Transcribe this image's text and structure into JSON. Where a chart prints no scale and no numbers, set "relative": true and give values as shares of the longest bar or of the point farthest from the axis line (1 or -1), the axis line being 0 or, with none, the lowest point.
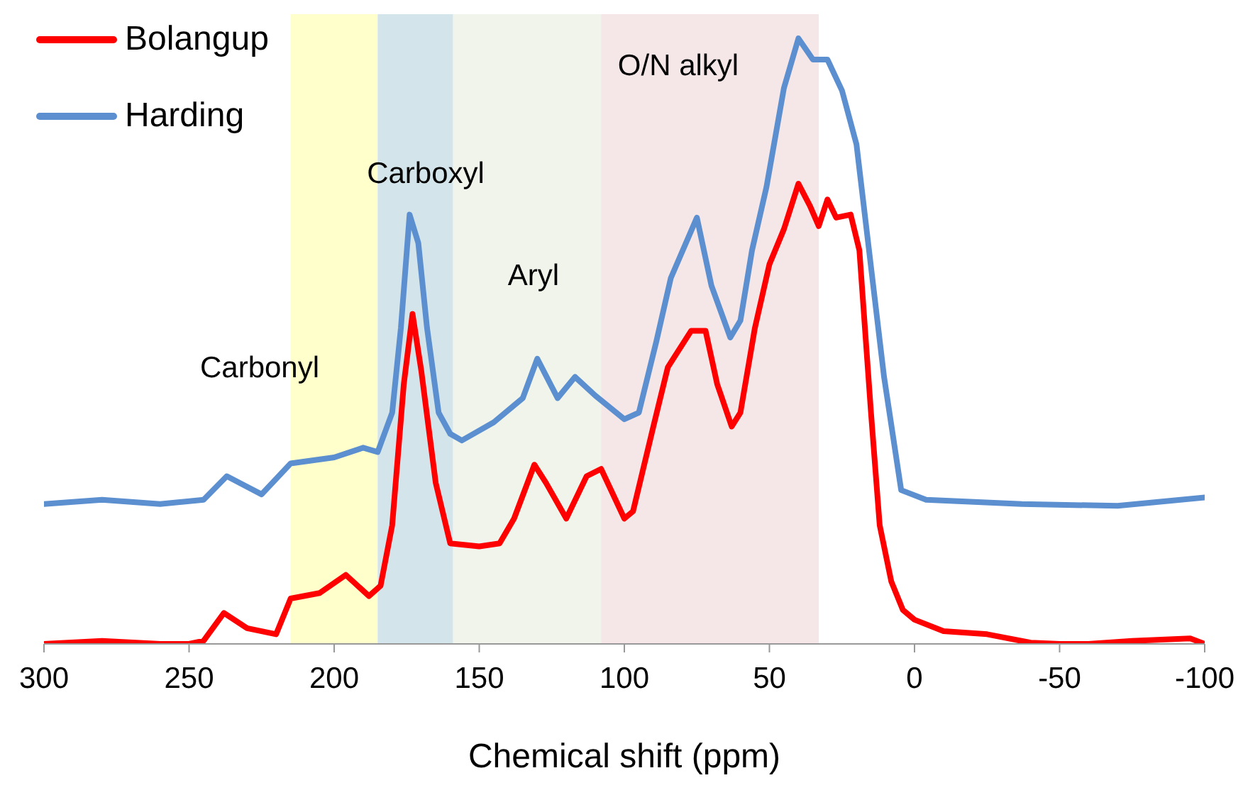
{
  "chart_data": {
    "type": "line",
    "relative": true,
    "xlabel": "Chemical shift (ppm)",
    "xlim": [
      300,
      -100
    ],
    "xticks": [
      300,
      250,
      200,
      150,
      100,
      50,
      0,
      -50,
      -100
    ],
    "legend": "top left",
    "marker": "none",
    "line_style": "solid",
    "series": [
      {
        "name": "Bolangup",
        "color": "#ff0000",
        "x": [
          300,
          280,
          260,
          250,
          245,
          238,
          230,
          220,
          215,
          205,
          196,
          188,
          184,
          180,
          176,
          173,
          170,
          165,
          160,
          150,
          143,
          138,
          131,
          127,
          120,
          113,
          108,
          100,
          97,
          90,
          85,
          77,
          72,
          68,
          63,
          60,
          55,
          50,
          45,
          40,
          36,
          33,
          30,
          27,
          22,
          19,
          15,
          12,
          8,
          4,
          0,
          -10,
          -25,
          -40,
          -50,
          -60,
          -75,
          -95,
          -100
        ],
        "values": [
          0.0,
          0.005,
          0.0,
          0.0,
          0.005,
          0.051,
          0.026,
          0.016,
          0.075,
          0.084,
          0.114,
          0.079,
          0.096,
          0.196,
          0.429,
          0.545,
          0.452,
          0.266,
          0.166,
          0.161,
          0.166,
          0.207,
          0.296,
          0.266,
          0.207,
          0.277,
          0.289,
          0.207,
          0.219,
          0.359,
          0.457,
          0.517,
          0.517,
          0.429,
          0.359,
          0.382,
          0.522,
          0.627,
          0.685,
          0.76,
          0.723,
          0.69,
          0.734,
          0.704,
          0.709,
          0.65,
          0.382,
          0.196,
          0.103,
          0.056,
          0.04,
          0.021,
          0.016,
          0.002,
          0.0,
          0.0,
          0.005,
          0.009,
          0.0
        ]
      },
      {
        "name": "Harding",
        "color": "#5b8fd0",
        "x": [
          300,
          280,
          260,
          245,
          237,
          225,
          215,
          200,
          190,
          185,
          180,
          177,
          174,
          171,
          168,
          164,
          160,
          156,
          145,
          135,
          130,
          123,
          117,
          110,
          100,
          95,
          89,
          84,
          75,
          70,
          63.5,
          60,
          56,
          51,
          45,
          40,
          35,
          30,
          25,
          20,
          15.4,
          10.5,
          4.6,
          -4,
          -37,
          -70,
          -100
        ],
        "values": [
          0.231,
          0.238,
          0.231,
          0.238,
          0.277,
          0.247,
          0.298,
          0.308,
          0.324,
          0.317,
          0.382,
          0.522,
          0.709,
          0.662,
          0.522,
          0.382,
          0.347,
          0.336,
          0.366,
          0.406,
          0.471,
          0.406,
          0.441,
          0.41,
          0.371,
          0.382,
          0.499,
          0.604,
          0.704,
          0.592,
          0.506,
          0.534,
          0.65,
          0.755,
          0.918,
          1.0,
          0.965,
          0.965,
          0.914,
          0.825,
          0.639,
          0.441,
          0.254,
          0.238,
          0.231,
          0.228,
          0.242
        ]
      }
    ],
    "bands": [
      {
        "axis": "x",
        "from": 215,
        "to": 185,
        "color": "#ffffcc"
      },
      {
        "axis": "x",
        "from": 185,
        "to": 159,
        "color": "#d3e4ea"
      },
      {
        "axis": "x",
        "from": 159,
        "to": 108,
        "color": "#f0f4ea"
      },
      {
        "axis": "x",
        "from": 108,
        "to": 33,
        "color": "#f5e6e7"
      }
    ],
    "annotations": [
      "Carbonyl",
      "Carboxyl",
      "Aryl",
      "O/N alkyl"
    ]
  }
}
